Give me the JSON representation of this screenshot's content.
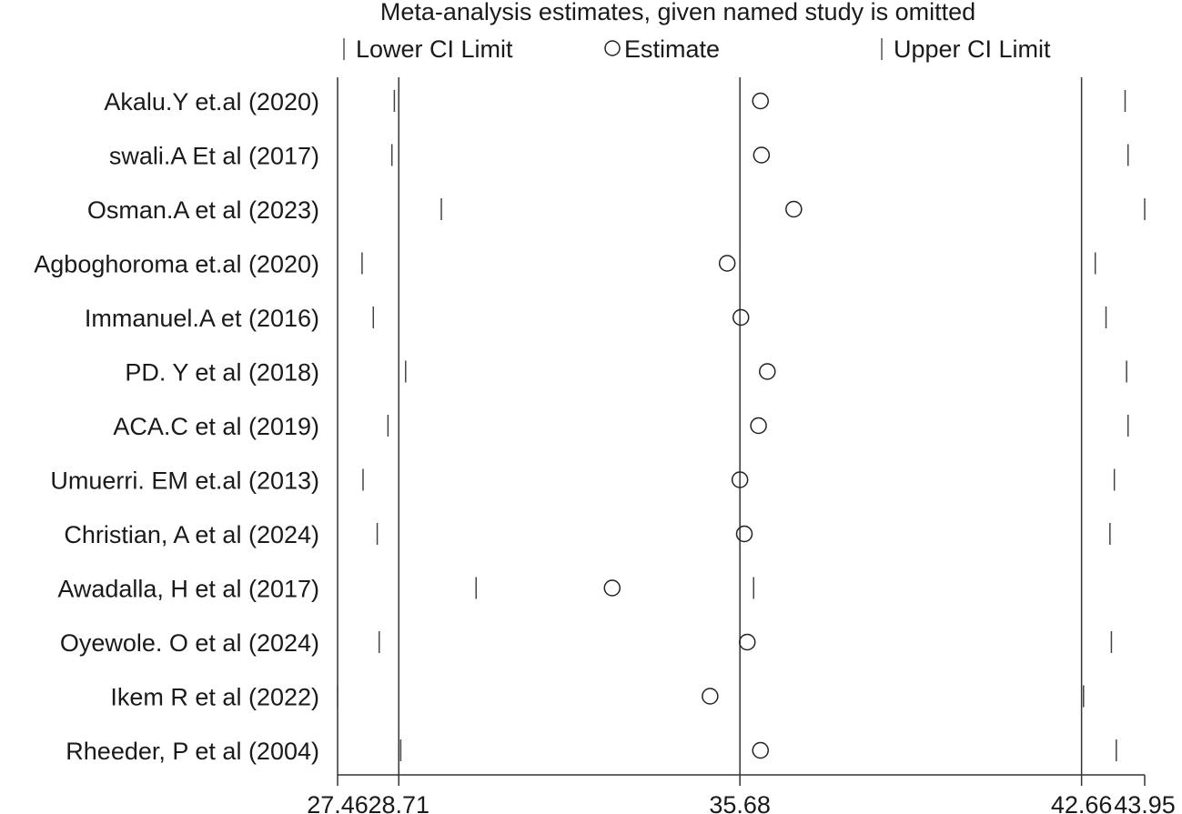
{
  "chart_data": {
    "type": "scatter",
    "title": "Meta-analysis estimates, given named study is omitted",
    "legend": {
      "placement": "top",
      "entries": [
        "Lower CI Limit",
        "Estimate",
        "Upper CI Limit"
      ]
    },
    "xlim": [
      27.46,
      43.95
    ],
    "x_ticks": [
      27.46,
      28.71,
      35.68,
      42.66,
      43.95
    ],
    "x_tick_labels": [
      "27.46",
      "28.71",
      "35.68",
      "42.66",
      "43.95"
    ],
    "reference_lines": [
      28.71,
      35.68,
      42.66
    ],
    "studies": [
      {
        "label": "Akalu.Y et.al (2020)",
        "lower": 28.62,
        "estimate": 36.1,
        "upper": 43.55
      },
      {
        "label": "swali.A Et al (2017)",
        "lower": 28.57,
        "estimate": 36.12,
        "upper": 43.61
      },
      {
        "label": "Osman.A et al (2023)",
        "lower": 29.58,
        "estimate": 36.78,
        "upper": 43.95
      },
      {
        "label": "Agboghoroma et.al (2020)",
        "lower": 27.96,
        "estimate": 35.42,
        "upper": 42.94
      },
      {
        "label": "Immanuel.A et (2016)",
        "lower": 28.19,
        "estimate": 35.7,
        "upper": 43.16
      },
      {
        "label": "PD. Y et al (2018)",
        "lower": 28.85,
        "estimate": 36.24,
        "upper": 43.58
      },
      {
        "label": "ACA.C et al (2019)",
        "lower": 28.49,
        "estimate": 36.06,
        "upper": 43.61
      },
      {
        "label": "Umuerri. EM et.al (2013)",
        "lower": 27.98,
        "estimate": 35.68,
        "upper": 43.33
      },
      {
        "label": "Christian, A et al (2024)",
        "lower": 28.27,
        "estimate": 35.77,
        "upper": 43.24
      },
      {
        "label": "Awadalla, H et al (2017)",
        "lower": 30.29,
        "estimate": 33.07,
        "upper": 35.96
      },
      {
        "label": "Oyewole. O et al (2024)",
        "lower": 28.31,
        "estimate": 35.83,
        "upper": 43.27
      },
      {
        "label": "Ikem R et al (2022)",
        "lower": 27.46,
        "estimate": 35.07,
        "upper": 42.7
      },
      {
        "label": "Rheeder, P et al (2004)",
        "lower": 28.75,
        "estimate": 36.1,
        "upper": 43.37
      }
    ]
  }
}
